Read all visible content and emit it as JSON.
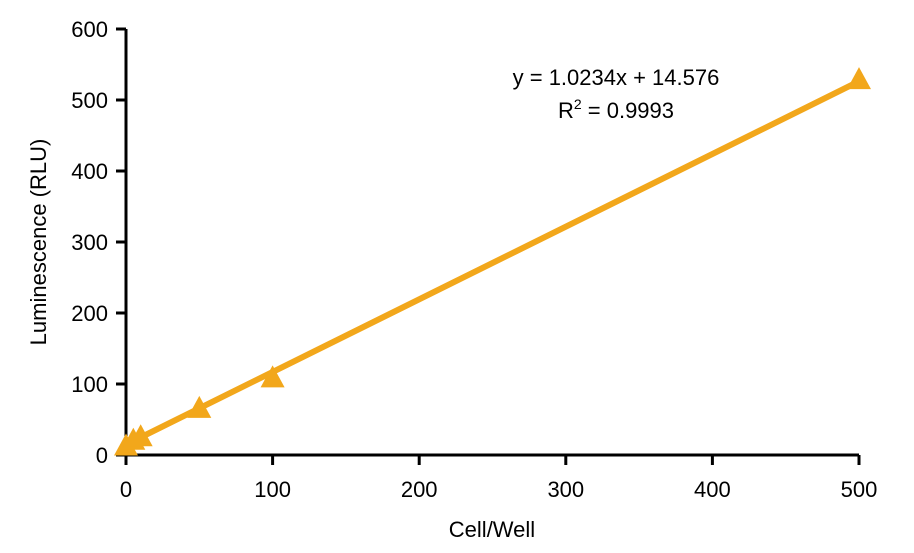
{
  "chart_data": {
    "type": "scatter",
    "title": "",
    "xlabel": "Cell/Well",
    "ylabel": "Luminescence (RLU)",
    "xlim": [
      0,
      500
    ],
    "ylim": [
      0,
      600
    ],
    "xticks": [
      0,
      100,
      200,
      300,
      400,
      500
    ],
    "yticks": [
      0,
      100,
      200,
      300,
      400,
      500,
      600
    ],
    "grid": false,
    "marker": "triangle",
    "color": "#F2A71B",
    "points": [
      {
        "x": 0,
        "y": 12
      },
      {
        "x": 5,
        "y": 20
      },
      {
        "x": 10,
        "y": 25
      },
      {
        "x": 50,
        "y": 65
      },
      {
        "x": 100,
        "y": 108
      },
      {
        "x": 500,
        "y": 528
      }
    ],
    "trendline": {
      "slope": 1.0234,
      "intercept": 14.576
    },
    "annotation": {
      "equation": "y = 1.0234x + 14.576",
      "r2_label": "R",
      "r2_sup": "2",
      "r2_value": " = 0.9993"
    }
  }
}
